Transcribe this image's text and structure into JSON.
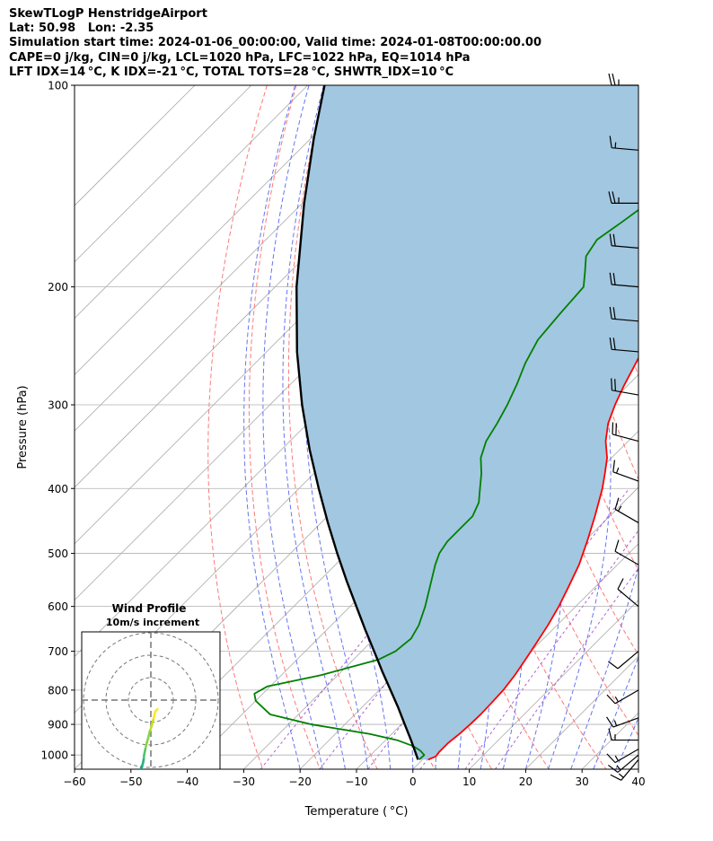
{
  "header": {
    "line1": "SkewTLogP HenstridgeAirport",
    "line2": "Lat: 50.98   Lon: -2.35",
    "line3": "Simulation start time: 2024-01-06_00:00:00, Valid time: 2024-01-08T00:00:00.00",
    "line4": "CAPE=0 j/kg, CIN=0 j/kg, LCL=1020 hPa, LFC=1022 hPa, EQ=1014 hPa",
    "line5": "LFT IDX=14 °C, K IDX=-21 °C, TOTAL TOTS=28 °C, SHWTR_IDX=10 °C"
  },
  "chart_data": {
    "type": "line",
    "xlabel": "Temperature ( °C)",
    "ylabel": "Pressure (hPa)",
    "xlim": [
      -60,
      40
    ],
    "ylim": [
      1050,
      100
    ],
    "y_scale": "log",
    "x_ticks": [
      "−60",
      "−50",
      "−40",
      "−30",
      "−20",
      "−10",
      "0",
      "10",
      "20",
      "30",
      "40"
    ],
    "x_tick_values": [
      -60,
      -50,
      -40,
      -30,
      -20,
      -10,
      0,
      10,
      20,
      30,
      40
    ],
    "y_ticks": [
      "100",
      "200",
      "300",
      "400",
      "500",
      "600",
      "700",
      "800",
      "900",
      "1000"
    ],
    "y_tick_values": [
      100,
      200,
      300,
      400,
      500,
      600,
      700,
      800,
      900,
      1000
    ],
    "grid": true,
    "colors": {
      "temperature": "#ff0000",
      "dewpoint": "#008000",
      "parcel": "#000000",
      "cin_shade": "#a2c7e0",
      "dry_adiabats": "#ff6060",
      "moist_adiabats": "#4a5cf0",
      "mixing_ratio": "#9a3ac8",
      "isotherms": "#aaaaaa"
    },
    "series": [
      {
        "key": "temperature",
        "points": [
          [
            1016,
            1.0
          ],
          [
            1005,
            1.8
          ],
          [
            990,
            1.6
          ],
          [
            960,
            1.6
          ],
          [
            930,
            2.0
          ],
          [
            900,
            2.2
          ],
          [
            870,
            2.3
          ],
          [
            840,
            2.2
          ],
          [
            800,
            2.0
          ],
          [
            760,
            1.4
          ],
          [
            720,
            0.5
          ],
          [
            680,
            -0.5
          ],
          [
            640,
            -1.6
          ],
          [
            600,
            -3.0
          ],
          [
            560,
            -4.8
          ],
          [
            520,
            -6.8
          ],
          [
            480,
            -9.5
          ],
          [
            440,
            -12.6
          ],
          [
            400,
            -16.2
          ],
          [
            380,
            -18.4
          ],
          [
            360,
            -20.8
          ],
          [
            340,
            -24.0
          ],
          [
            320,
            -26.7
          ],
          [
            300,
            -28.8
          ],
          [
            280,
            -30.7
          ],
          [
            260,
            -32.5
          ],
          [
            240,
            -34.4
          ],
          [
            220,
            -36.4
          ],
          [
            200,
            -38.5
          ],
          [
            180,
            -40.7
          ],
          [
            160,
            -43.4
          ],
          [
            150,
            -45.3
          ],
          [
            140,
            -47.3
          ],
          [
            130,
            -49.2
          ],
          [
            120,
            -51.0
          ],
          [
            110,
            -53.0
          ],
          [
            100,
            -54.5
          ]
        ]
      },
      {
        "key": "dewpoint",
        "points": [
          [
            1016,
            -0.6
          ],
          [
            1000,
            -0.5
          ],
          [
            985,
            -2.0
          ],
          [
            970,
            -4.0
          ],
          [
            950,
            -8.0
          ],
          [
            930,
            -14.0
          ],
          [
            900,
            -26.0
          ],
          [
            870,
            -35.0
          ],
          [
            830,
            -40.0
          ],
          [
            810,
            -41.5
          ],
          [
            790,
            -40.5
          ],
          [
            760,
            -33.0
          ],
          [
            720,
            -25.5
          ],
          [
            700,
            -24.0
          ],
          [
            670,
            -23.5
          ],
          [
            640,
            -24.5
          ],
          [
            600,
            -26.7
          ],
          [
            560,
            -29.4
          ],
          [
            520,
            -32.3
          ],
          [
            500,
            -33.6
          ],
          [
            480,
            -34.3
          ],
          [
            460,
            -34.3
          ],
          [
            440,
            -34.3
          ],
          [
            420,
            -35.6
          ],
          [
            400,
            -37.9
          ],
          [
            380,
            -40.3
          ],
          [
            360,
            -43.2
          ],
          [
            340,
            -45.2
          ],
          [
            320,
            -46.4
          ],
          [
            300,
            -47.9
          ],
          [
            280,
            -49.8
          ],
          [
            260,
            -52.1
          ],
          [
            240,
            -54.0
          ],
          [
            220,
            -54.7
          ],
          [
            200,
            -55.3
          ],
          [
            190,
            -57.7
          ],
          [
            180,
            -60.3
          ],
          [
            170,
            -61.3
          ],
          [
            160,
            -60.0
          ],
          [
            150,
            -58.8
          ],
          [
            140,
            -57.5
          ],
          [
            130,
            -56.3
          ],
          [
            120,
            -54.6
          ],
          [
            110,
            -51.8
          ],
          [
            100,
            -49.0
          ]
        ]
      },
      {
        "key": "parcel",
        "points": [
          [
            1016,
            -0.8
          ],
          [
            1000,
            -1.9
          ],
          [
            950,
            -5.5
          ],
          [
            900,
            -9.4
          ],
          [
            850,
            -13.5
          ],
          [
            800,
            -18.0
          ],
          [
            750,
            -22.8
          ],
          [
            700,
            -27.8
          ],
          [
            650,
            -33.2
          ],
          [
            600,
            -38.9
          ],
          [
            550,
            -45.1
          ],
          [
            500,
            -51.7
          ],
          [
            450,
            -58.8
          ],
          [
            400,
            -66.5
          ],
          [
            350,
            -75.0
          ],
          [
            300,
            -84.3
          ],
          [
            250,
            -94.6
          ],
          [
            200,
            -106.2
          ],
          [
            150,
            -119.7
          ],
          [
            120,
            -129.5
          ],
          [
            100,
            -137.0
          ]
        ]
      }
    ],
    "wind_barbs": [
      {
        "p": 100,
        "spd": 25,
        "dir": 270
      },
      {
        "p": 125,
        "spd": 15,
        "dir": 275
      },
      {
        "p": 150,
        "spd": 25,
        "dir": 270
      },
      {
        "p": 175,
        "spd": 20,
        "dir": 275
      },
      {
        "p": 200,
        "spd": 20,
        "dir": 275
      },
      {
        "p": 225,
        "spd": 20,
        "dir": 275
      },
      {
        "p": 250,
        "spd": 20,
        "dir": 275
      },
      {
        "p": 290,
        "spd": 20,
        "dir": 280
      },
      {
        "p": 340,
        "spd": 20,
        "dir": 285
      },
      {
        "p": 390,
        "spd": 15,
        "dir": 290
      },
      {
        "p": 450,
        "spd": 15,
        "dir": 300
      },
      {
        "p": 520,
        "spd": 10,
        "dir": 300
      },
      {
        "p": 600,
        "spd": 10,
        "dir": 310
      },
      {
        "p": 700,
        "spd": 10,
        "dir": 230
      },
      {
        "p": 800,
        "spd": 15,
        "dir": 240
      },
      {
        "p": 880,
        "spd": 15,
        "dir": 250
      },
      {
        "p": 950,
        "spd": 15,
        "dir": 270
      },
      {
        "p": 980,
        "spd": 15,
        "dir": 240
      },
      {
        "p": 1000,
        "spd": 15,
        "dir": 230
      },
      {
        "p": 1016,
        "spd": 15,
        "dir": 220
      }
    ],
    "inset": {
      "title": "Wind Profile",
      "subtitle": "10m/s increment",
      "hodograph": [
        [
          3,
          4
        ],
        [
          2,
          5
        ],
        [
          1.5,
          7
        ],
        [
          1,
          9
        ],
        [
          0.2,
          12
        ],
        [
          -0.5,
          14
        ],
        [
          -1.2,
          17
        ],
        [
          -1.8,
          19
        ],
        [
          -2.5,
          22
        ],
        [
          -3,
          24.5
        ],
        [
          -3.2,
          26.5
        ],
        [
          -3.5,
          28
        ],
        [
          -3.8,
          29
        ],
        [
          -4.2,
          30
        ],
        [
          -4.6,
          31
        ],
        [
          -4.8,
          32
        ],
        [
          -5,
          33
        ],
        [
          -5.3,
          34
        ],
        [
          -5.6,
          35
        ],
        [
          -5.8,
          36
        ],
        [
          -5.9,
          37
        ],
        [
          -5.9,
          38
        ],
        [
          -5.6,
          39
        ],
        [
          -5.2,
          40
        ],
        [
          -4.5,
          40.3
        ],
        [
          -4.8,
          39
        ],
        [
          -5,
          38.2
        ],
        [
          -4.3,
          37.2
        ],
        [
          -3.3,
          36.3
        ],
        [
          -2.1,
          35.6
        ],
        [
          -1.2,
          35.1
        ]
      ],
      "hodograph_colors": [
        "#fde725",
        "#c2df23",
        "#86d549",
        "#52c569",
        "#2ab07f",
        "#1e9b8a",
        "#25858e",
        "#2d708e",
        "#38588c",
        "#433e85",
        "#482173",
        "#440154"
      ]
    }
  }
}
